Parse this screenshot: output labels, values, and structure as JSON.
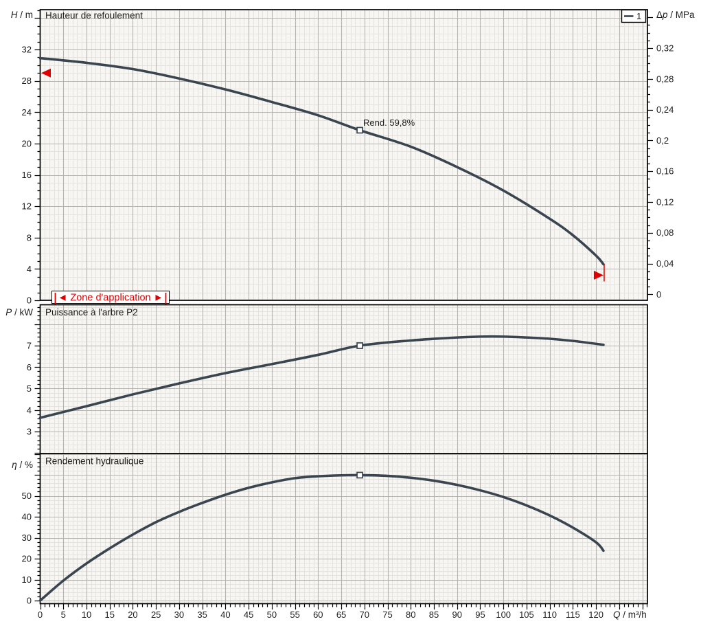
{
  "colors": {
    "curve": "#3a4550",
    "accent_red": "#e10000",
    "plot_bg": "#f7f6f2",
    "grid_minor": "#e4e3df",
    "grid_major": "#b6b4b0",
    "axis": "#000000",
    "text": "#1c1c1c"
  },
  "legend": {
    "series_label": "1"
  },
  "x_axis": {
    "var": "Q",
    "unit": "m³/h",
    "minor_step": 1,
    "major_step": 5,
    "tick_labels": [
      [
        0,
        "0"
      ],
      [
        5,
        "5"
      ],
      [
        10,
        "10"
      ],
      [
        15,
        "15"
      ],
      [
        20,
        "20"
      ],
      [
        25,
        "25"
      ],
      [
        30,
        "30"
      ],
      [
        35,
        "35"
      ],
      [
        40,
        "40"
      ],
      [
        45,
        "45"
      ],
      [
        50,
        "50"
      ],
      [
        55,
        "55"
      ],
      [
        60,
        "60"
      ],
      [
        65,
        "65"
      ],
      [
        70,
        "70"
      ],
      [
        75,
        "75"
      ],
      [
        80,
        "80"
      ],
      [
        85,
        "85"
      ],
      [
        90,
        "90"
      ],
      [
        95,
        "95"
      ],
      [
        100,
        "100"
      ],
      [
        105,
        "105"
      ],
      [
        110,
        "110"
      ],
      [
        115,
        "115"
      ],
      [
        120,
        "120"
      ]
    ]
  },
  "chart_data": [
    {
      "id": "head",
      "type": "line",
      "title": "Hauteur de refoulement",
      "y_left": {
        "prefix": "",
        "var": "H",
        "unit": "m",
        "minor_step": 1,
        "major_step": 4,
        "tick_labels": [
          [
            0,
            "0"
          ],
          [
            4,
            "4"
          ],
          [
            8,
            "8"
          ],
          [
            12,
            "12"
          ],
          [
            16,
            "16"
          ],
          [
            20,
            "20"
          ],
          [
            24,
            "24"
          ],
          [
            28,
            "28"
          ],
          [
            32,
            "32"
          ]
        ]
      },
      "y_right": {
        "prefix": "Δ",
        "var": "p",
        "unit": "MPa",
        "minor_step": 0.01,
        "major_step": 0.04,
        "tick_labels": [
          [
            0,
            "0"
          ],
          [
            0.04,
            "0,04"
          ],
          [
            0.08,
            "0,08"
          ],
          [
            0.12,
            "0,12"
          ],
          [
            0.16,
            "0,16"
          ],
          [
            0.2,
            "0,2"
          ],
          [
            0.24,
            "0,24"
          ],
          [
            0.28,
            "0,28"
          ],
          [
            0.32,
            "0,32"
          ]
        ]
      },
      "series": [
        {
          "name": "1",
          "points": [
            [
              0,
              30.9
            ],
            [
              10,
              30.3
            ],
            [
              20,
              29.5
            ],
            [
              30,
              28.3
            ],
            [
              40,
              26.9
            ],
            [
              50,
              25.3
            ],
            [
              60,
              23.6
            ],
            [
              69,
              21.7
            ],
            [
              80,
              19.6
            ],
            [
              90,
              17.0
            ],
            [
              100,
              14.0
            ],
            [
              110,
              10.4
            ],
            [
              115,
              8.3
            ],
            [
              120,
              5.7
            ],
            [
              121.6,
              4.6
            ]
          ]
        }
      ],
      "duty_point": {
        "q": 69,
        "value": 21.7,
        "label": "Rend.  59,8%"
      },
      "zone": {
        "label": "Zone d'application",
        "left_arrow_glyph": "◄",
        "right_arrow_glyph": "►",
        "q_min": 0,
        "head_at_min": 29.0,
        "q_max": 121.6,
        "head_at_max": 4.6
      }
    },
    {
      "id": "power",
      "type": "line",
      "title": "Puissance à l'arbre P2",
      "y_left": {
        "prefix": "",
        "var": "P",
        "unit": "kW",
        "minor_step": 0.2,
        "major_step": 1,
        "tick_labels": [
          [
            3,
            "3"
          ],
          [
            4,
            "4"
          ],
          [
            5,
            "5"
          ],
          [
            6,
            "6"
          ],
          [
            7,
            "7"
          ]
        ]
      },
      "series": [
        {
          "name": "1",
          "points": [
            [
              0,
              3.64
            ],
            [
              10,
              4.18
            ],
            [
              20,
              4.73
            ],
            [
              30,
              5.24
            ],
            [
              40,
              5.72
            ],
            [
              50,
              6.14
            ],
            [
              60,
              6.57
            ],
            [
              69,
              7.0
            ],
            [
              80,
              7.24
            ],
            [
              90,
              7.38
            ],
            [
              95,
              7.42
            ],
            [
              100,
              7.42
            ],
            [
              105,
              7.38
            ],
            [
              110,
              7.32
            ],
            [
              115,
              7.22
            ],
            [
              121.6,
              7.04
            ]
          ]
        }
      ],
      "duty_point": {
        "q": 69,
        "value": 7.0
      }
    },
    {
      "id": "efficiency",
      "type": "line",
      "title": "Rendement hydraulique",
      "y_left": {
        "prefix": "",
        "var": "η",
        "unit": "%",
        "minor_step": 2,
        "major_step": 10,
        "tick_labels": [
          [
            0,
            "0"
          ],
          [
            10,
            "10"
          ],
          [
            20,
            "20"
          ],
          [
            30,
            "30"
          ],
          [
            40,
            "40"
          ],
          [
            50,
            "50"
          ]
        ]
      },
      "series": [
        {
          "name": "1",
          "points": [
            [
              0,
              0
            ],
            [
              5,
              9.5
            ],
            [
              10,
              17.7
            ],
            [
              15,
              24.9
            ],
            [
              20,
              31.5
            ],
            [
              25,
              37.4
            ],
            [
              30,
              42.3
            ],
            [
              35,
              46.6
            ],
            [
              40,
              50.5
            ],
            [
              45,
              53.8
            ],
            [
              50,
              56.4
            ],
            [
              55,
              58.4
            ],
            [
              60,
              59.3
            ],
            [
              65,
              59.75
            ],
            [
              69,
              59.85
            ],
            [
              75,
              59.5
            ],
            [
              80,
              58.6
            ],
            [
              85,
              57.2
            ],
            [
              90,
              55.2
            ],
            [
              95,
              52.6
            ],
            [
              100,
              49.4
            ],
            [
              105,
              45.4
            ],
            [
              110,
              40.6
            ],
            [
              115,
              34.8
            ],
            [
              120,
              27.8
            ],
            [
              121.6,
              23.8
            ]
          ]
        }
      ],
      "duty_point": {
        "q": 69,
        "value": 59.85
      }
    }
  ]
}
